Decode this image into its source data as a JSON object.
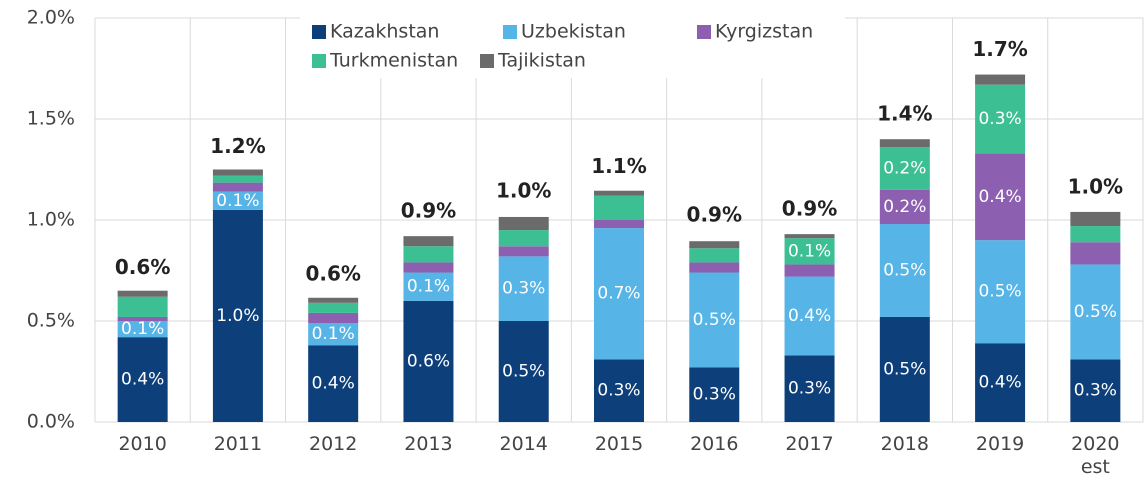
{
  "chart_data": {
    "type": "stacked_bar",
    "categories": [
      "2010",
      "2011",
      "2012",
      "2013",
      "2014",
      "2015",
      "2016",
      "2017",
      "2018",
      "2019",
      "2020 est"
    ],
    "series": [
      {
        "name": "Kazakhstan",
        "color": "#0d3f7a",
        "values": [
          0.42,
          1.05,
          0.38,
          0.6,
          0.5,
          0.31,
          0.27,
          0.33,
          0.52,
          0.39,
          0.31
        ],
        "value_labels": [
          "0.4%",
          "1.0%",
          "0.4%",
          "0.6%",
          "0.5%",
          "0.3%",
          "0.3%",
          "0.3%",
          "0.5%",
          "0.4%",
          "0.3%"
        ]
      },
      {
        "name": "Uzbekistan",
        "color": "#56b4e6",
        "values": [
          0.08,
          0.09,
          0.11,
          0.14,
          0.32,
          0.65,
          0.47,
          0.39,
          0.46,
          0.51,
          0.47
        ],
        "value_labels": [
          "0.1%",
          "0.1%",
          "0.1%",
          "0.1%",
          "0.3%",
          "0.7%",
          "0.5%",
          "0.4%",
          "0.5%",
          "0.5%",
          "0.5%"
        ]
      },
      {
        "name": "Kyrgizstan",
        "color": "#8d5fb0",
        "values": [
          0.02,
          0.045,
          0.05,
          0.05,
          0.05,
          0.04,
          0.05,
          0.06,
          0.17,
          0.43,
          0.11
        ],
        "value_labels": [
          null,
          null,
          null,
          null,
          null,
          null,
          null,
          null,
          "0.2%",
          "0.4%",
          null
        ]
      },
      {
        "name": "Turkmenistan",
        "color": "#3dbf94",
        "values": [
          0.1,
          0.035,
          0.05,
          0.08,
          0.08,
          0.12,
          0.07,
          0.13,
          0.21,
          0.34,
          0.08
        ],
        "value_labels": [
          null,
          null,
          null,
          null,
          null,
          null,
          null,
          "0.1%",
          "0.2%",
          "0.3%",
          null
        ]
      },
      {
        "name": "Tajikistan",
        "color": "#6b6b6b",
        "values": [
          0.03,
          0.03,
          0.025,
          0.05,
          0.065,
          0.025,
          0.035,
          0.02,
          0.04,
          0.05,
          0.07
        ],
        "value_labels": [
          null,
          null,
          null,
          null,
          null,
          null,
          null,
          null,
          null,
          null,
          null
        ]
      }
    ],
    "totals": [
      0.64,
      1.24,
      0.61,
      0.92,
      1.02,
      1.14,
      0.9,
      0.93,
      1.4,
      1.72,
      1.04
    ],
    "total_labels": [
      "0.6%",
      "1.2%",
      "0.6%",
      "0.9%",
      "1.0%",
      "1.1%",
      "0.9%",
      "0.9%",
      "1.4%",
      "1.7%",
      "1.0%"
    ],
    "ylim": [
      0,
      2
    ],
    "yticks": [
      {
        "value": 0,
        "label": "0.0%"
      },
      {
        "value": 0.5,
        "label": "0.5%"
      },
      {
        "value": 1,
        "label": "1.0%"
      },
      {
        "value": 1.5,
        "label": "1.5%"
      },
      {
        "value": 2,
        "label": "2.0%"
      }
    ],
    "grid": true,
    "legend": "top"
  }
}
